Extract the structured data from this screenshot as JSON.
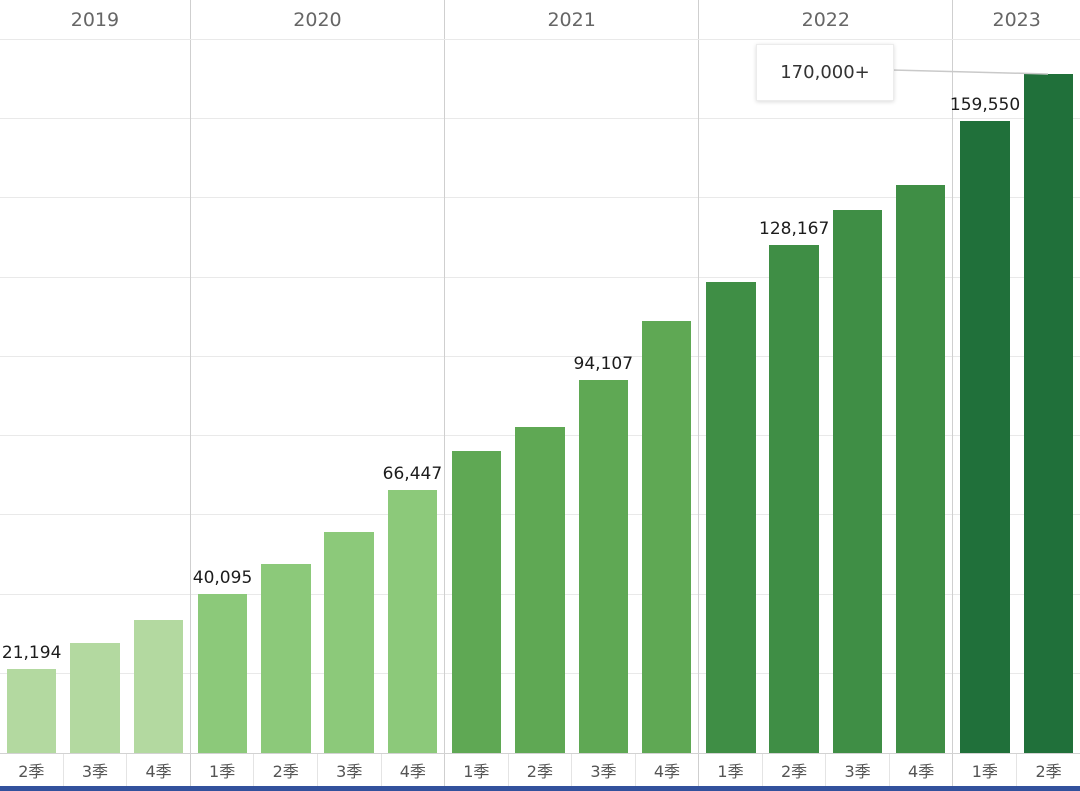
{
  "chart_data": {
    "type": "bar",
    "title": "",
    "xlabel": "",
    "ylabel": "",
    "axis": {
      "ymax": 180000,
      "grid_step": 20000,
      "grid_on": true,
      "baseline": 0
    },
    "legend": "none",
    "years": [
      {
        "year": "2019",
        "color": "#b3d9a0",
        "bars": [
          {
            "quarter": "2季",
            "value": 21194,
            "label": "21,194"
          },
          {
            "quarter": "3季",
            "value": 27900
          },
          {
            "quarter": "4季",
            "value": 33500
          }
        ]
      },
      {
        "year": "2020",
        "color": "#8cc97a",
        "bars": [
          {
            "quarter": "1季",
            "value": 40095,
            "label": "40,095"
          },
          {
            "quarter": "2季",
            "value": 47800
          },
          {
            "quarter": "3季",
            "value": 55800
          },
          {
            "quarter": "4季",
            "value": 66447,
            "label": "66,447"
          }
        ]
      },
      {
        "year": "2021",
        "color": "#5fa854",
        "bars": [
          {
            "quarter": "1季",
            "value": 76200
          },
          {
            "quarter": "2季",
            "value": 82400
          },
          {
            "quarter": "3季",
            "value": 94107,
            "label": "94,107"
          },
          {
            "quarter": "4季",
            "value": 109000
          }
        ]
      },
      {
        "year": "2022",
        "color": "#3f8e45",
        "bars": [
          {
            "quarter": "1季",
            "value": 118800
          },
          {
            "quarter": "2季",
            "value": 128167,
            "label": "128,167"
          },
          {
            "quarter": "3季",
            "value": 137200
          },
          {
            "quarter": "4季",
            "value": 143400
          }
        ]
      },
      {
        "year": "2023",
        "color": "#20703a",
        "bars": [
          {
            "quarter": "1季",
            "value": 159550,
            "label": "159,550"
          },
          {
            "quarter": "2季",
            "value": 171500
          }
        ]
      }
    ],
    "annotation": {
      "text": "170,000+",
      "points_to": "2023 2季"
    }
  },
  "colors": {
    "background": "#ffffff",
    "gridline": "#e9e9e9",
    "pane_separator": "#cfcfcf",
    "header_rule": "#d9d9d9",
    "year_label": "#666666",
    "quarter_label": "#555555",
    "bar_value_label": "#1c1c1c",
    "annotation_text": "#333333",
    "bottom_strip": "#32519d"
  }
}
